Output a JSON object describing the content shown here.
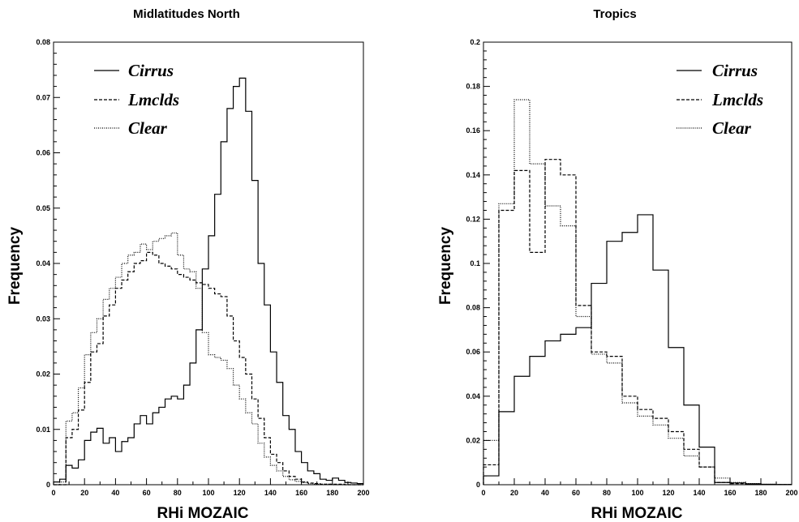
{
  "chart_data": [
    {
      "type": "line",
      "title": "Midlatitudes North",
      "xlabel": "RHi MOZAIC",
      "ylabel": "Frequency",
      "xlim": [
        0,
        200
      ],
      "ylim": [
        0,
        0.08
      ],
      "xticks": [
        0,
        20,
        40,
        60,
        80,
        100,
        120,
        140,
        160,
        180,
        200
      ],
      "xtick_labels": [
        "0",
        "20",
        "40",
        "60",
        "80",
        "100",
        "120",
        "140",
        "160",
        "180",
        "200"
      ],
      "yticks": [
        0,
        0.01,
        0.02,
        0.03,
        0.04,
        0.05,
        0.06,
        0.07,
        0.08
      ],
      "ytick_labels": [
        "0",
        "0.01",
        "0.02",
        "0.03",
        "0.04",
        "0.05",
        "0.06",
        "0.07",
        "0.08"
      ],
      "grid": false,
      "legend_position": "top-left",
      "bin_width": 4,
      "bin_start": 0,
      "series": [
        {
          "name": "Cirrus",
          "style": "solid",
          "values": [
            0.0005,
            0.001,
            0.0035,
            0.003,
            0.0045,
            0.008,
            0.0095,
            0.0102,
            0.0075,
            0.0085,
            0.006,
            0.0078,
            0.0085,
            0.011,
            0.0125,
            0.011,
            0.013,
            0.014,
            0.0155,
            0.016,
            0.0155,
            0.018,
            0.022,
            0.028,
            0.039,
            0.045,
            0.0525,
            0.062,
            0.068,
            0.072,
            0.0735,
            0.0675,
            0.055,
            0.04,
            0.0325,
            0.024,
            0.0185,
            0.0125,
            0.01,
            0.006,
            0.004,
            0.0025,
            0.002,
            0.001,
            0.0008,
            0.0012,
            0.0008,
            0.0004,
            0.0003,
            0.0002
          ]
        },
        {
          "name": "Lmclds",
          "style": "dashed",
          "values": [
            0,
            0,
            0.0085,
            0.01,
            0.0135,
            0.0185,
            0.024,
            0.0255,
            0.0305,
            0.0325,
            0.0355,
            0.037,
            0.0385,
            0.04,
            0.0405,
            0.042,
            0.0415,
            0.04,
            0.0395,
            0.039,
            0.038,
            0.0375,
            0.037,
            0.0365,
            0.0362,
            0.0355,
            0.0345,
            0.034,
            0.0305,
            0.026,
            0.023,
            0.02,
            0.0155,
            0.012,
            0.0085,
            0.0055,
            0.004,
            0.0025,
            0.0015,
            0.001,
            0.0005,
            0.0003,
            0.0002,
            0.0001,
            0.0001,
            0.0001,
            0.0001,
            0,
            0,
            0
          ]
        },
        {
          "name": "Clear",
          "style": "dotted",
          "values": [
            0,
            0.0005,
            0.0115,
            0.013,
            0.0175,
            0.0235,
            0.0275,
            0.03,
            0.0335,
            0.0355,
            0.0375,
            0.04,
            0.0415,
            0.042,
            0.0435,
            0.0425,
            0.044,
            0.0445,
            0.045,
            0.0455,
            0.0415,
            0.039,
            0.0385,
            0.0355,
            0.0275,
            0.0235,
            0.023,
            0.0225,
            0.021,
            0.018,
            0.0155,
            0.013,
            0.011,
            0.0075,
            0.005,
            0.0035,
            0.0025,
            0.0015,
            0.0009,
            0.0006,
            0.0004,
            0.0002,
            0.0001,
            0.0001,
            0.0001,
            0,
            0,
            0,
            0,
            0
          ]
        }
      ]
    },
    {
      "type": "line",
      "title": "Tropics",
      "xlabel": "RHi MOZAIC",
      "ylabel": "Frequency",
      "xlim": [
        0,
        200
      ],
      "ylim": [
        0,
        0.2
      ],
      "xticks": [
        0,
        20,
        40,
        60,
        80,
        100,
        120,
        140,
        160,
        180,
        200
      ],
      "xtick_labels": [
        "0",
        "20",
        "40",
        "60",
        "80",
        "100",
        "120",
        "140",
        "160",
        "180",
        "200"
      ],
      "yticks": [
        0,
        0.02,
        0.04,
        0.06,
        0.08,
        0.1,
        0.12,
        0.14,
        0.16,
        0.18,
        0.2
      ],
      "ytick_labels": [
        "0",
        "0.02",
        "0.04",
        "0.06",
        "0.08",
        "0.1",
        "0.12",
        "0.14",
        "0.16",
        "0.18",
        "0.2"
      ],
      "grid": false,
      "legend_position": "top-right",
      "bin_width": 10,
      "bin_start": 0,
      "series": [
        {
          "name": "Cirrus",
          "style": "solid",
          "values": [
            0.004,
            0.033,
            0.049,
            0.058,
            0.065,
            0.068,
            0.071,
            0.091,
            0.11,
            0.114,
            0.122,
            0.097,
            0.062,
            0.036,
            0.017,
            0.001,
            0.0008,
            0.0004,
            0.0002,
            0.0001
          ]
        },
        {
          "name": "Lmclds",
          "style": "dashed",
          "values": [
            0.009,
            0.124,
            0.142,
            0.105,
            0.147,
            0.14,
            0.081,
            0.06,
            0.058,
            0.04,
            0.034,
            0.03,
            0.024,
            0.016,
            0.008,
            0.001,
            0.0005,
            0.0002,
            0.0001,
            0.0001
          ]
        },
        {
          "name": "Clear",
          "style": "dotted",
          "values": [
            0.02,
            0.127,
            0.174,
            0.145,
            0.126,
            0.117,
            0.076,
            0.059,
            0.055,
            0.037,
            0.031,
            0.027,
            0.021,
            0.013,
            0.008,
            0.003,
            0.001,
            0.0005,
            0.0002,
            0.0001
          ]
        }
      ]
    }
  ]
}
